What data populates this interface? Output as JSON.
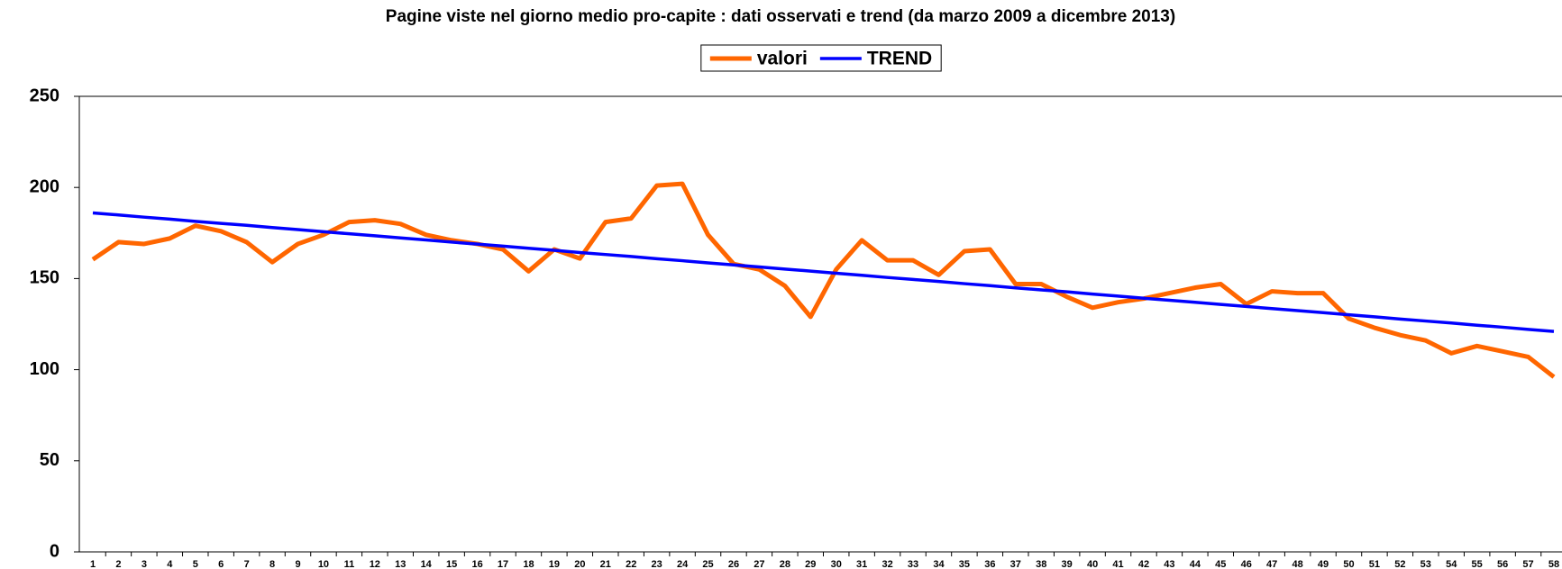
{
  "chart_data": {
    "type": "line",
    "title": "Pagine viste nel giorno medio pro-capite : dati osservati e trend (da marzo 2009 a dicembre 2013)",
    "categories": [
      "1",
      "2",
      "3",
      "4",
      "5",
      "6",
      "7",
      "8",
      "9",
      "10",
      "11",
      "12",
      "13",
      "14",
      "15",
      "16",
      "17",
      "18",
      "19",
      "20",
      "21",
      "22",
      "23",
      "24",
      "25",
      "26",
      "27",
      "28",
      "29",
      "30",
      "31",
      "32",
      "33",
      "34",
      "35",
      "36",
      "37",
      "38",
      "39",
      "40",
      "41",
      "42",
      "43",
      "44",
      "45",
      "46",
      "47",
      "48",
      "49",
      "50",
      "51",
      "52",
      "53",
      "54",
      "55",
      "56",
      "57",
      "58"
    ],
    "series": [
      {
        "name": "valori",
        "color": "#ff6600",
        "values": [
          160.5,
          170,
          169,
          172,
          179,
          176,
          170,
          159,
          169,
          174,
          181,
          182,
          180,
          174,
          171,
          169,
          166,
          154,
          166,
          161,
          181,
          183,
          201,
          202,
          174,
          158,
          155,
          146,
          129,
          155,
          171,
          160,
          160,
          152,
          165,
          166,
          147,
          147,
          140,
          134,
          137,
          139,
          142,
          145,
          147,
          136,
          143,
          142,
          142,
          128,
          123,
          119,
          116,
          109,
          113,
          110,
          107,
          96
        ]
      },
      {
        "name": "TREND",
        "color": "#0000ff",
        "values": [
          186.0,
          184.9,
          183.7,
          182.6,
          181.4,
          180.3,
          179.2,
          178.0,
          176.9,
          175.7,
          174.6,
          173.5,
          172.3,
          171.2,
          170.0,
          168.9,
          167.8,
          166.6,
          165.5,
          164.3,
          163.2,
          162.1,
          160.9,
          159.8,
          158.6,
          157.5,
          156.4,
          155.2,
          154.1,
          152.9,
          151.8,
          150.6,
          149.5,
          148.4,
          147.2,
          146.1,
          144.9,
          143.8,
          142.7,
          141.5,
          140.4,
          139.2,
          138.1,
          137.0,
          135.8,
          134.7,
          133.5,
          132.4,
          131.3,
          130.1,
          129.0,
          127.8,
          126.7,
          125.6,
          124.4,
          123.3,
          122.1,
          121.0
        ]
      }
    ],
    "ylim": [
      0,
      250
    ],
    "yticks": [
      0,
      50,
      100,
      150,
      200,
      250
    ],
    "grid": false,
    "legend": "top"
  }
}
